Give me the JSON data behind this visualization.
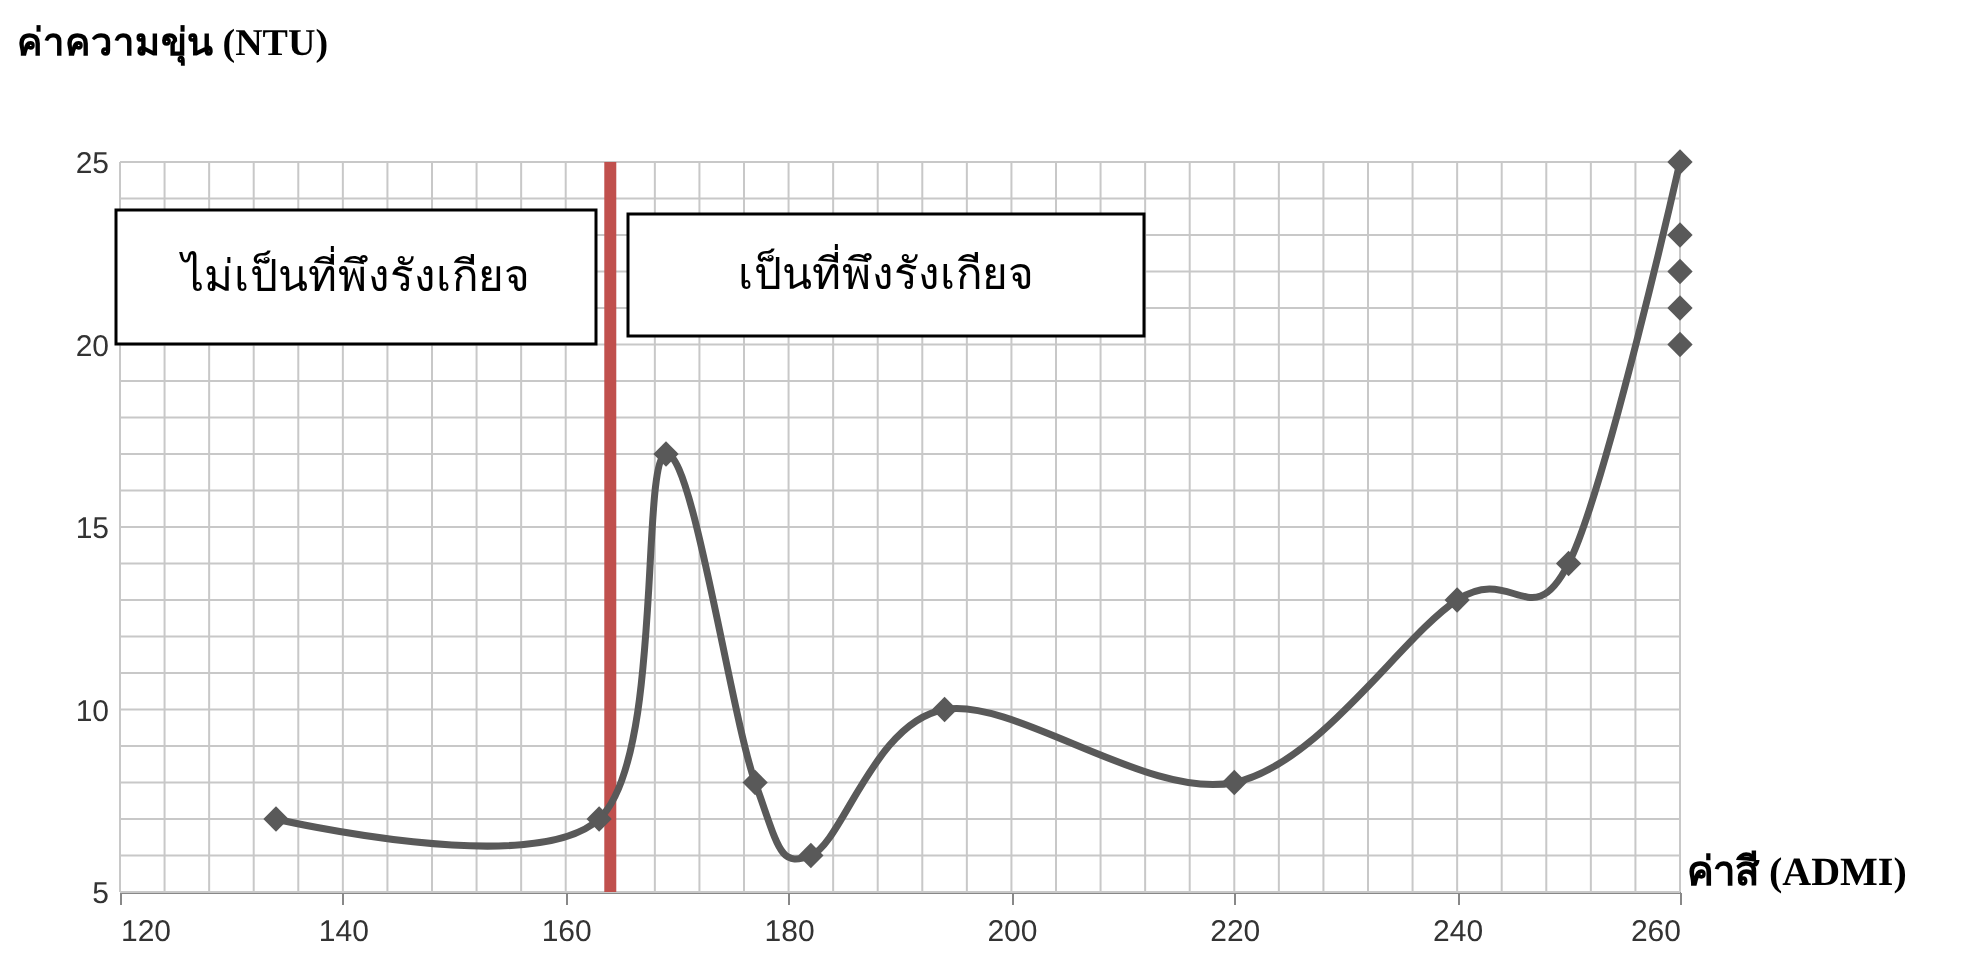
{
  "chart_data": {
    "type": "line",
    "xlabel": "ค่าสี (ADMI)",
    "ylabel": "ค่าความขุ่น (NTU)",
    "annotations": [
      "ไม่เป็นที่พึงรังเกียจ",
      "เป็นที่พึงรังเกียจ"
    ],
    "xlim": [
      120,
      260
    ],
    "xticks": [
      120,
      140,
      160,
      180,
      200,
      220,
      240,
      260
    ],
    "ylim": [
      5,
      25
    ],
    "yticks": [
      5,
      10,
      15,
      20,
      25
    ],
    "grid": true,
    "marker": "diamond",
    "line_style": "solid",
    "series": [
      {
        "color": "#595959",
        "x": [
          134,
          163,
          169,
          177,
          182,
          194,
          220,
          240,
          250,
          260
        ],
        "values": [
          7,
          7,
          17,
          8,
          6,
          10,
          8,
          13,
          14,
          25
        ]
      },
      {
        "type": "scatter",
        "color": "#595959",
        "x": [
          260,
          260,
          260,
          260
        ],
        "values": [
          23,
          22,
          21,
          20
        ]
      }
    ],
    "ref_lines": [
      {
        "axis": "x",
        "value": 164,
        "color": "#c0504d"
      }
    ]
  }
}
